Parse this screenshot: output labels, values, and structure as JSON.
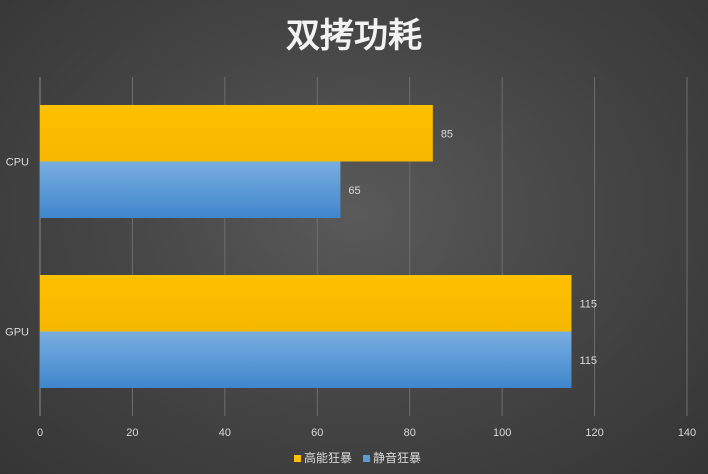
{
  "chart_data": {
    "type": "bar",
    "orientation": "horizontal",
    "title": "双拷功耗",
    "categories": [
      "CPU",
      "GPU"
    ],
    "series": [
      {
        "name": "高能狂暴",
        "values": [
          85,
          115
        ],
        "color": "#FFC000"
      },
      {
        "name": "静音狂暴",
        "values": [
          65,
          115
        ],
        "color": "#5B9BD5"
      }
    ],
    "xlim": [
      0,
      140
    ],
    "x_ticks": [
      0,
      20,
      40,
      60,
      80,
      100,
      120,
      140
    ],
    "grid": true,
    "legend_position": "bottom",
    "data_labels": true
  },
  "colors": {
    "title": "#F2F2F2",
    "tick_label": "#D9D9D9",
    "data_label": "#D9D9D9",
    "gridline": "#6E6E6E",
    "axis": "#8C8C8C"
  }
}
